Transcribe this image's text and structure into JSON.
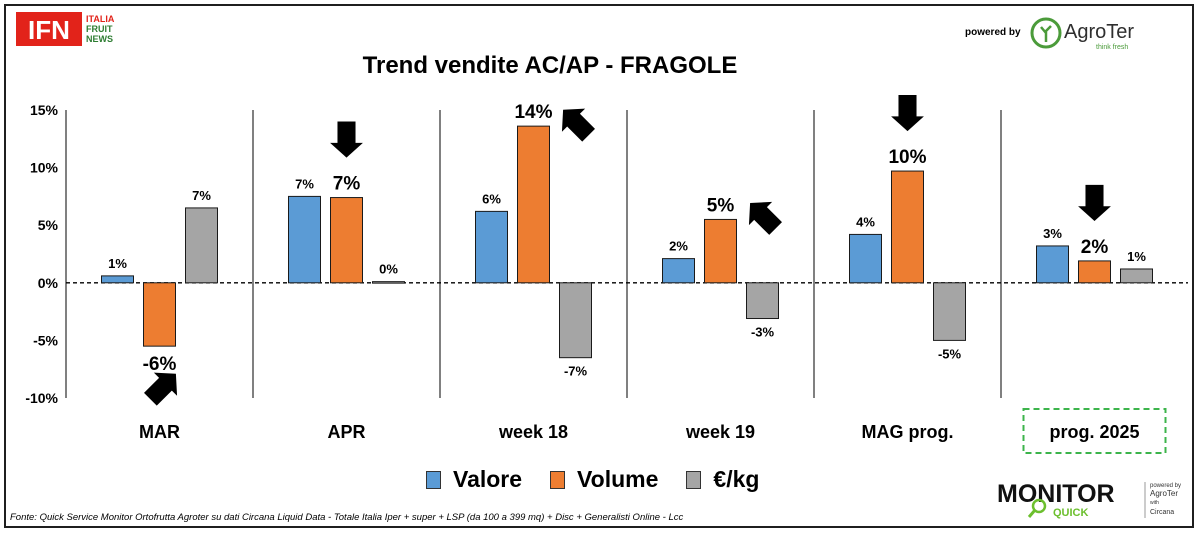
{
  "header": {
    "brand_logo": "IFN",
    "brand_logo_sub": [
      "ITALIA",
      "FRUIT",
      "NEWS"
    ],
    "powered_by": "powered by",
    "partner_logo": "AgroTer",
    "partner_tagline": "think fresh"
  },
  "chart_data": {
    "type": "bar",
    "title": "Trend vendite AC/AP - FRAGOLE",
    "categories": [
      "MAR",
      "APR",
      "week 18",
      "week 19",
      "MAG prog.",
      "prog. 2025"
    ],
    "highlighted_category": "prog. 2025",
    "series": [
      {
        "name": "Valore",
        "color": "#5B9BD5",
        "values": [
          0.6,
          7.5,
          6.2,
          2.1,
          4.2,
          3.2
        ],
        "labels": [
          "1%",
          "7%",
          "6%",
          "2%",
          "4%",
          "3%"
        ]
      },
      {
        "name": "Volume",
        "color": "#ED7D31",
        "values": [
          -5.5,
          7.4,
          13.6,
          5.5,
          9.7,
          1.9
        ],
        "labels": [
          "-6%",
          "7%",
          "14%",
          "5%",
          "10%",
          "2%"
        ],
        "emphasized_labels": true
      },
      {
        "name": "€/kg",
        "color": "#A5A5A5",
        "values": [
          6.5,
          0.1,
          -6.5,
          -3.1,
          -5.0,
          1.2
        ],
        "labels": [
          "7%",
          "0%",
          "-7%",
          "-3%",
          "-5%",
          "1%"
        ]
      }
    ],
    "y_ticks": [
      "15%",
      "10%",
      "5%",
      "0%",
      "-5%",
      "-10%"
    ],
    "y_tick_values": [
      15,
      10,
      5,
      0,
      -5,
      -10
    ],
    "ylim": [
      -10,
      15
    ],
    "zero_line": "dashed",
    "legend_position": "bottom-center",
    "annotations": [
      {
        "type": "arrow",
        "category": "MAR",
        "series": "Volume",
        "direction": "up-right"
      },
      {
        "type": "arrow",
        "category": "APR",
        "series": "Volume",
        "direction": "down"
      },
      {
        "type": "arrow",
        "category": "week 18",
        "series": "Volume",
        "direction": "up-left"
      },
      {
        "type": "arrow",
        "category": "week 19",
        "series": "Volume",
        "direction": "up-left"
      },
      {
        "type": "arrow",
        "category": "MAG prog.",
        "series": "Volume",
        "direction": "down"
      },
      {
        "type": "arrow",
        "category": "prog. 2025",
        "series": "Volume",
        "direction": "down"
      }
    ]
  },
  "footer": {
    "source": "Fonte: Quick Service Monitor Ortofrutta Agroter su dati Circana Liquid Data - Totale Italia Iper + super + LSP (da 100 a 399 mq) + Disc + Generalisti Online - Lcc",
    "monitor_logo": "MONITOR",
    "monitor_logo_sub": "QUICK",
    "monitor_powered": "powered by",
    "monitor_partner": "AgroTer",
    "monitor_with": "with",
    "monitor_circana": "Circana"
  }
}
